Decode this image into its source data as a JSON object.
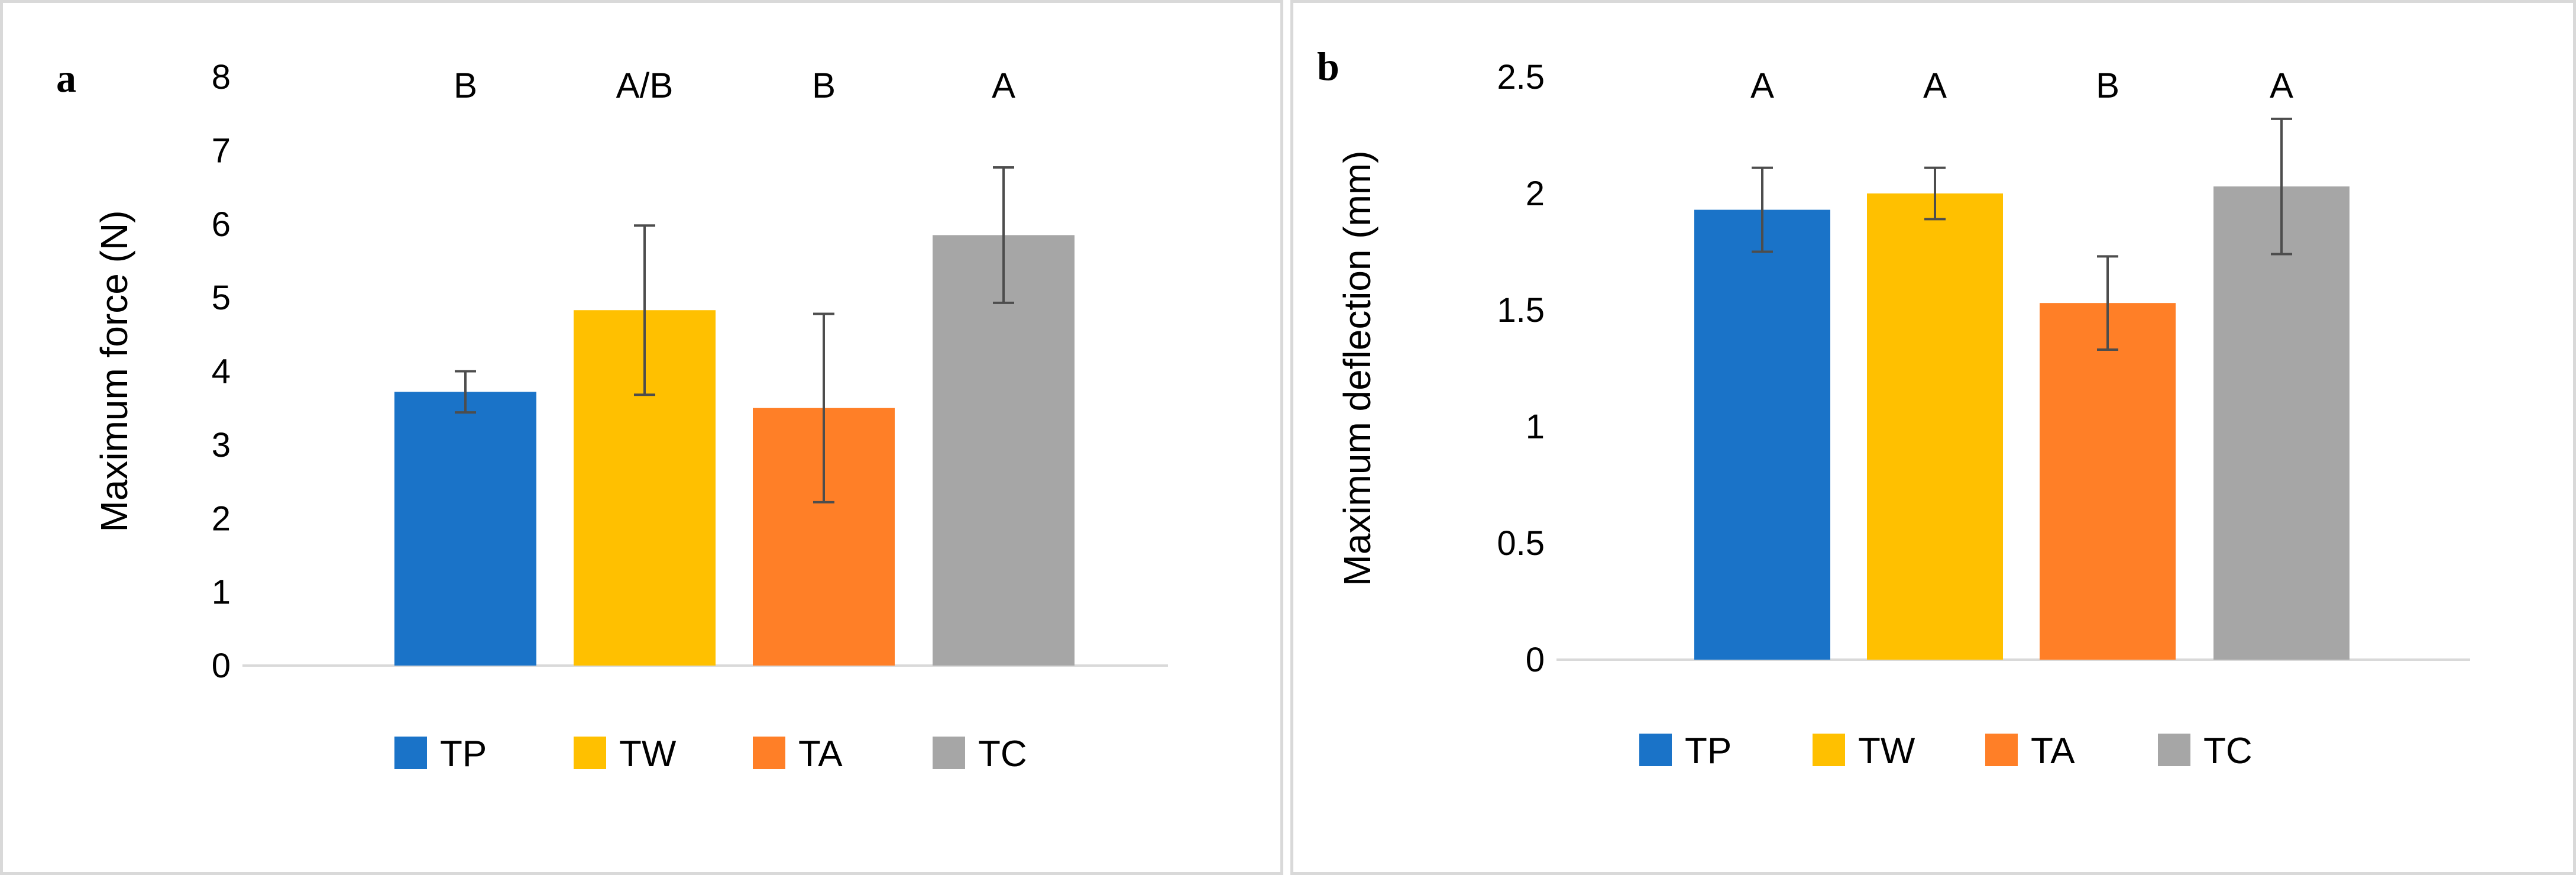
{
  "colors": {
    "TP": "#1a73c8",
    "TW": "#ffc000",
    "TA": "#ff7f27",
    "TC": "#a6a6a6",
    "error_bar": "#4d4d4d",
    "axis": "#d9d9d9"
  },
  "chart_data": [
    {
      "type": "bar",
      "panel_label": "a",
      "title": "",
      "xlabel": "",
      "ylabel": "Maximum force (N)",
      "categories": [
        "TP",
        "TW",
        "TA",
        "TC"
      ],
      "values": [
        3.72,
        4.83,
        3.5,
        5.85
      ],
      "errors": [
        0.28,
        1.15,
        1.28,
        0.92
      ],
      "significance": [
        "B",
        "A/B",
        "B",
        "A"
      ],
      "ylim": [
        0,
        8
      ],
      "yticks": [
        "0",
        "1",
        "2",
        "3",
        "4",
        "5",
        "6",
        "7",
        "8"
      ],
      "legend": [
        "TP",
        "TW",
        "TA",
        "TC"
      ],
      "legend_position": "bottom",
      "grid": false
    },
    {
      "type": "bar",
      "panel_label": "b",
      "title": "",
      "xlabel": "",
      "ylabel": "Maximum deflection (mm)",
      "categories": [
        "TP",
        "TW",
        "TA",
        "TC"
      ],
      "values": [
        1.93,
        2.0,
        1.53,
        2.03
      ],
      "errors": [
        0.18,
        0.11,
        0.2,
        0.29
      ],
      "significance": [
        "A",
        "A",
        "B",
        "A"
      ],
      "ylim": [
        0,
        2.5
      ],
      "yticks": [
        "0",
        "0.5",
        "1",
        "1.5",
        "2",
        "2.5"
      ],
      "legend": [
        "TP",
        "TW",
        "TA",
        "TC"
      ],
      "legend_position": "bottom",
      "grid": false
    }
  ]
}
